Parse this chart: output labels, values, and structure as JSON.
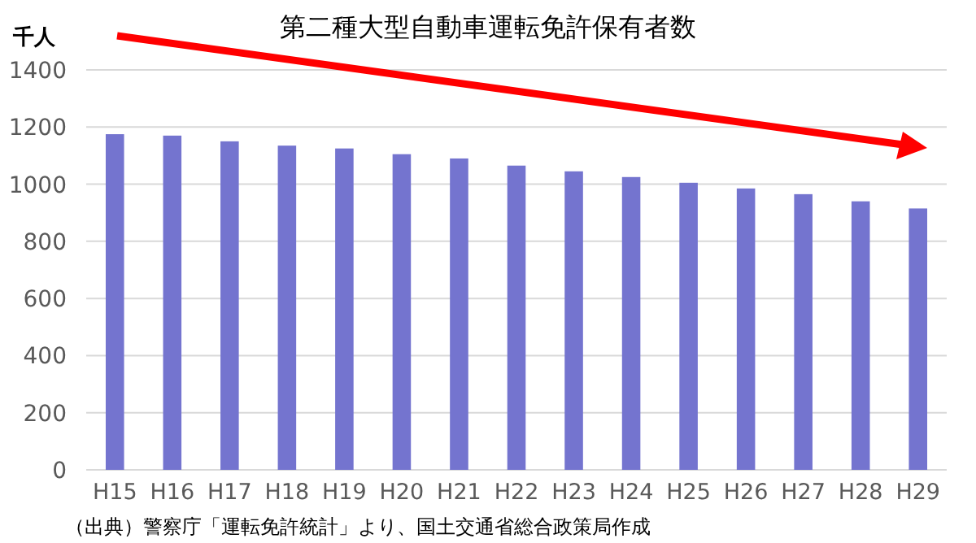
{
  "chart_data": {
    "type": "bar",
    "title": "第二種大型自動車運転免許保有者数",
    "ylabel": "千人",
    "categories": [
      "H15",
      "H16",
      "H17",
      "H18",
      "H19",
      "H20",
      "H21",
      "H22",
      "H23",
      "H24",
      "H25",
      "H26",
      "H27",
      "H28",
      "H29"
    ],
    "values": [
      1175,
      1170,
      1150,
      1135,
      1125,
      1105,
      1090,
      1065,
      1045,
      1025,
      1005,
      985,
      965,
      940,
      915
    ],
    "color": "#7474cf",
    "ylim": [
      0,
      1400
    ],
    "yticks": [
      0,
      200,
      400,
      600,
      800,
      1000,
      1200,
      1400
    ],
    "grid": "y",
    "annotations": [
      "（出典）警察庁「運転免許統計」より、国土交通省総合政策局作成"
    ]
  }
}
